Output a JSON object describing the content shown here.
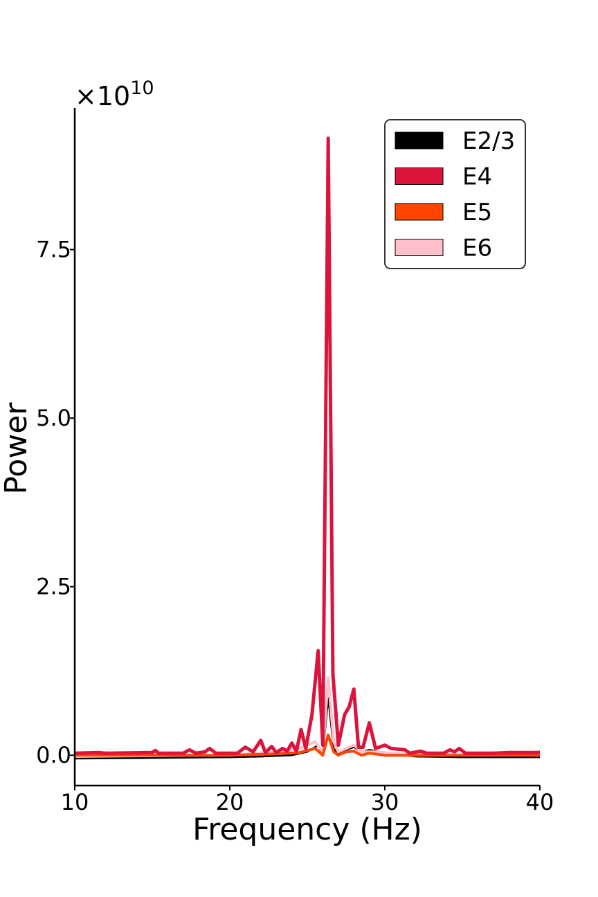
{
  "chart_data": {
    "type": "line",
    "xlabel": "Frequency (Hz)",
    "ylabel": "Power",
    "y_offset_label": "×10",
    "y_offset_exponent": "10",
    "xlim": [
      10,
      40
    ],
    "ylim": [
      -0.45,
      9.6
    ],
    "x_ticks": [
      10,
      20,
      30,
      40
    ],
    "x_tick_labels": [
      "10",
      "20",
      "30",
      "40"
    ],
    "y_ticks": [
      0,
      2.5,
      5.0,
      7.5
    ],
    "y_tick_labels": [
      "0.0",
      "2.5",
      "5.0",
      "7.5"
    ],
    "grid": false,
    "legend_position": "top-right",
    "series": [
      {
        "name": "E2/3",
        "color": "#000000",
        "width": 2.5,
        "points": [
          [
            10,
            -0.05
          ],
          [
            15,
            -0.04
          ],
          [
            20,
            -0.03
          ],
          [
            22,
            -0.02
          ],
          [
            24,
            0.0
          ],
          [
            25,
            0.05
          ],
          [
            25.7,
            0.15
          ],
          [
            26.0,
            0.0
          ],
          [
            26.35,
            0.85
          ],
          [
            26.7,
            0.1
          ],
          [
            27.0,
            0.02
          ],
          [
            27.5,
            0.08
          ],
          [
            28.0,
            0.12
          ],
          [
            28.5,
            0.05
          ],
          [
            29.0,
            0.08
          ],
          [
            30.0,
            0.03
          ],
          [
            32,
            -0.02
          ],
          [
            35,
            -0.03
          ],
          [
            40,
            -0.03
          ]
        ]
      },
      {
        "name": "E6",
        "color": "#FFC0CB",
        "width": 4,
        "points": [
          [
            10,
            0.01
          ],
          [
            20,
            0.0
          ],
          [
            23,
            0.05
          ],
          [
            24.5,
            0.1
          ],
          [
            25.5,
            0.2
          ],
          [
            26.0,
            0.05
          ],
          [
            26.35,
            1.15
          ],
          [
            26.7,
            0.2
          ],
          [
            27.0,
            0.05
          ],
          [
            27.5,
            0.1
          ],
          [
            28.0,
            0.15
          ],
          [
            28.5,
            0.05
          ],
          [
            29.5,
            0.05
          ],
          [
            31,
            0.02
          ],
          [
            35,
            0.01
          ],
          [
            40,
            0.01
          ]
        ]
      },
      {
        "name": "E5",
        "color": "#FF4500",
        "width": 4,
        "points": [
          [
            10,
            0.0
          ],
          [
            20,
            0.0
          ],
          [
            23,
            0.02
          ],
          [
            24.5,
            0.04
          ],
          [
            25.5,
            0.1
          ],
          [
            26.0,
            0.0
          ],
          [
            26.35,
            0.3
          ],
          [
            26.7,
            0.05
          ],
          [
            27.0,
            0.0
          ],
          [
            27.5,
            0.05
          ],
          [
            28.0,
            0.06
          ],
          [
            28.5,
            0.0
          ],
          [
            29.0,
            0.03
          ],
          [
            30,
            0.0
          ],
          [
            35,
            0.0
          ],
          [
            40,
            0.0
          ]
        ]
      },
      {
        "name": "E4",
        "color": "#DC143C",
        "width": 5,
        "points": [
          [
            10,
            0.03
          ],
          [
            11.5,
            0.04
          ],
          [
            12,
            0.03
          ],
          [
            15,
            0.04
          ],
          [
            15.2,
            0.07
          ],
          [
            15.4,
            0.03
          ],
          [
            17,
            0.03
          ],
          [
            17.4,
            0.08
          ],
          [
            17.8,
            0.03
          ],
          [
            18.4,
            0.05
          ],
          [
            18.7,
            0.1
          ],
          [
            19.1,
            0.03
          ],
          [
            20.5,
            0.03
          ],
          [
            21.0,
            0.12
          ],
          [
            21.5,
            0.05
          ],
          [
            22.0,
            0.22
          ],
          [
            22.3,
            0.04
          ],
          [
            22.7,
            0.13
          ],
          [
            23.0,
            0.04
          ],
          [
            23.4,
            0.1
          ],
          [
            23.7,
            0.06
          ],
          [
            24.0,
            0.18
          ],
          [
            24.3,
            0.06
          ],
          [
            24.6,
            0.38
          ],
          [
            24.9,
            0.1
          ],
          [
            25.3,
            0.6
          ],
          [
            25.7,
            1.55
          ],
          [
            26.0,
            0.15
          ],
          [
            26.35,
            9.15
          ],
          [
            26.65,
            1.2
          ],
          [
            27.0,
            0.15
          ],
          [
            27.4,
            0.6
          ],
          [
            27.7,
            0.72
          ],
          [
            28.0,
            0.98
          ],
          [
            28.3,
            0.12
          ],
          [
            28.6,
            0.12
          ],
          [
            29.0,
            0.48
          ],
          [
            29.4,
            0.1
          ],
          [
            30.0,
            0.15
          ],
          [
            30.4,
            0.1
          ],
          [
            31.3,
            0.08
          ],
          [
            31.6,
            0.03
          ],
          [
            32.3,
            0.06
          ],
          [
            32.7,
            0.03
          ],
          [
            33.8,
            0.03
          ],
          [
            34.2,
            0.08
          ],
          [
            34.5,
            0.05
          ],
          [
            34.8,
            0.1
          ],
          [
            35.2,
            0.03
          ],
          [
            37,
            0.03
          ],
          [
            38,
            0.04
          ],
          [
            40,
            0.04
          ],
          [
            40.2,
            0.08
          ]
        ]
      }
    ],
    "legend": [
      {
        "name": "E2/3",
        "color": "#000000"
      },
      {
        "name": "E4",
        "color": "#DC143C"
      },
      {
        "name": "E5",
        "color": "#FF4500"
      },
      {
        "name": "E6",
        "color": "#FFC0CB"
      }
    ]
  }
}
